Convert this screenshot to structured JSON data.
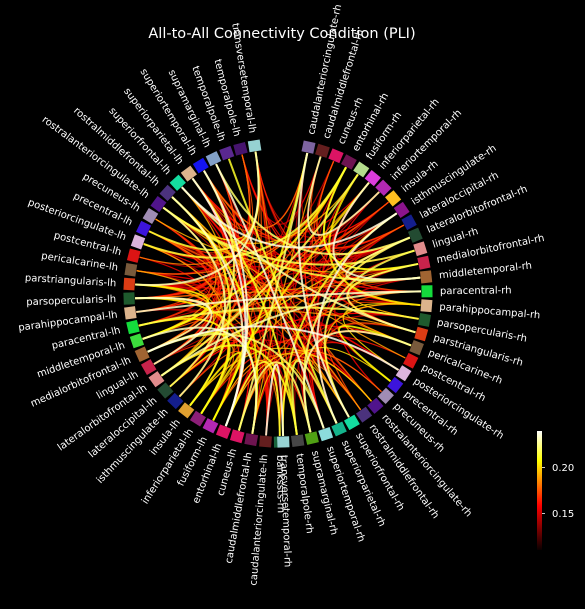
{
  "chart_data": {
    "type": "chord",
    "title": "All-to-All Connectivity Condition (PLI)",
    "background": "#000000",
    "colormap": "hot",
    "colorbar": {
      "vmin": 0.11,
      "vmax": 0.24,
      "ticks": [
        0.15,
        0.2
      ],
      "tick_labels": [
        "0.15",
        "0.20"
      ]
    },
    "nodes": [
      {
        "name": "transversetemporal-lh",
        "color": "#96d2d2"
      },
      {
        "name": "temporalpole-lh",
        "color": "#46146e"
      },
      {
        "name": "temporalpole-lh",
        "color": "#5a2890"
      },
      {
        "name": "supramarginal-lh",
        "color": "#82a0c8"
      },
      {
        "name": "superiortemporal-lh",
        "color": "#1414f0"
      },
      {
        "name": "superiorparietal-lh",
        "color": "#dcb48c"
      },
      {
        "name": "superiorfrontal-lh",
        "color": "#14dca0"
      },
      {
        "name": "rostralmiddlefrontal-lh",
        "color": "#4b327d"
      },
      {
        "name": "rostralanteriorcingulate-lh",
        "color": "#50148c"
      },
      {
        "name": "precuneus-lh",
        "color": "#a08cb4"
      },
      {
        "name": "precentral-lh",
        "color": "#3c14dc"
      },
      {
        "name": "posteriorcingulate-lh",
        "color": "#dcb4dc"
      },
      {
        "name": "postcentral-lh",
        "color": "#dc1414"
      },
      {
        "name": "pericalcarine-lh",
        "color": "#785a3c"
      },
      {
        "name": "parstriangularis-lh",
        "color": "#dc3c14"
      },
      {
        "name": "parsopercularis-lh",
        "color": "#1e5a2d"
      },
      {
        "name": "parahippocampal-lh",
        "color": "#dcb48c"
      },
      {
        "name": "paracentral-lh",
        "color": "#14dc3c"
      },
      {
        "name": "middletemporal-lh",
        "color": "#3cdc3c"
      },
      {
        "name": "medialorbitofrontal-lh",
        "color": "#a06432"
      },
      {
        "name": "lingual-lh",
        "color": "#c8234b"
      },
      {
        "name": "lateralorbitofrontal-lh",
        "color": "#e18c8c"
      },
      {
        "name": "lateraloccipital-lh",
        "color": "#234b32"
      },
      {
        "name": "isthmuscingulate-lh",
        "color": "#141e8c"
      },
      {
        "name": "insula-lh",
        "color": "#e1a030"
      },
      {
        "name": "inferiorparietal-lh",
        "color": "#8c1e78"
      },
      {
        "name": "fusiform-lh",
        "color": "#b428b4"
      },
      {
        "name": "entorhinal-lh",
        "color": "#dc1464"
      },
      {
        "name": "cuneus-lh",
        "color": "#dc1464"
      },
      {
        "name": "caudalmiddlefrontal-lh",
        "color": "#6e1450"
      },
      {
        "name": "caudalanteriorcingulate-lh",
        "color": "#641e1e"
      },
      {
        "name": "bankssts-rh",
        "color": "#19643c"
      },
      {
        "name": "caudalanteriorcingulate-rh",
        "color": "#7d64a0"
      },
      {
        "name": "caudalmiddlefrontal-rh",
        "color": "#641e1e"
      },
      {
        "name": "cuneus-rh",
        "color": "#dc1464"
      },
      {
        "name": "entorhinal-rh",
        "color": "#6e1450"
      },
      {
        "name": "fusiform-rh",
        "color": "#b4dc8c"
      },
      {
        "name": "inferiorparietal-rh",
        "color": "#dc3cdc"
      },
      {
        "name": "inferiortemporal-rh",
        "color": "#b428b4"
      },
      {
        "name": "insula-rh",
        "color": "#ffc020"
      },
      {
        "name": "isthmuscingulate-rh",
        "color": "#8c148c"
      },
      {
        "name": "lateraloccipital-rh",
        "color": "#141e8c"
      },
      {
        "name": "lateralorbitofrontal-rh",
        "color": "#234b32"
      },
      {
        "name": "lingual-rh",
        "color": "#e18c8c"
      },
      {
        "name": "medialorbitofrontal-rh",
        "color": "#c8234b"
      },
      {
        "name": "middletemporal-rh",
        "color": "#a06432"
      },
      {
        "name": "paracentral-rh",
        "color": "#14dc3c"
      },
      {
        "name": "parahippocampal-rh",
        "color": "#dcb48c"
      },
      {
        "name": "parsopercularis-rh",
        "color": "#1e5a2d"
      },
      {
        "name": "parstriangularis-rh",
        "color": "#dc3c14"
      },
      {
        "name": "pericalcarine-rh",
        "color": "#785a3c"
      },
      {
        "name": "postcentral-rh",
        "color": "#dc1414"
      },
      {
        "name": "posteriorcingulate-rh",
        "color": "#dcb4dc"
      },
      {
        "name": "precentral-rh",
        "color": "#3c14dc"
      },
      {
        "name": "precuneus-rh",
        "color": "#a08cb4"
      },
      {
        "name": "rostralanteriorcingulate-rh",
        "color": "#50148c"
      },
      {
        "name": "rostralmiddlefrontal-rh",
        "color": "#4b327d"
      },
      {
        "name": "superiorfrontal-rh",
        "color": "#14dca0"
      },
      {
        "name": "superiorparietal-rh",
        "color": "#14b48c"
      },
      {
        "name": "superiortemporal-rh",
        "color": "#8cdcdc"
      },
      {
        "name": "supramarginal-rh",
        "color": "#50a014"
      },
      {
        "name": "temporalpole-rh",
        "color": "#464646"
      },
      {
        "name": "transversetemporal-rh",
        "color": "#96d2d2"
      }
    ]
  }
}
